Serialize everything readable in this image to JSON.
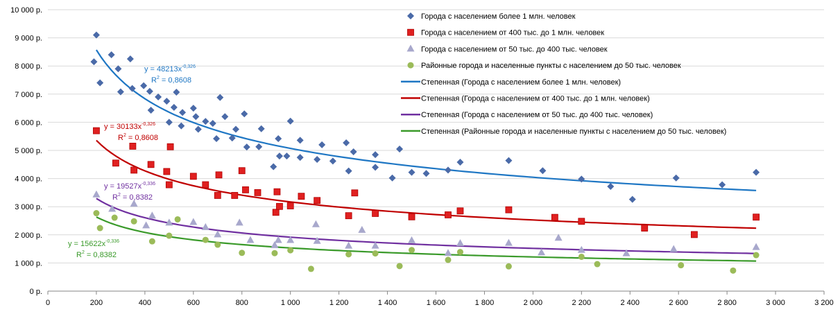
{
  "chart_data": {
    "type": "scatter",
    "xlim": [
      0,
      3200
    ],
    "ylim": [
      0,
      10000
    ],
    "grid": true,
    "legend_position": "top-right",
    "x_ticks": [
      "0",
      "200",
      "400",
      "600",
      "800",
      "1 000",
      "1 200",
      "1 400",
      "1 600",
      "1 800",
      "2 000",
      "2 200",
      "2 400",
      "2 600",
      "2 800",
      "3 000",
      "3 200"
    ],
    "y_ticks": [
      "0 р.",
      "1 000 р.",
      "2 000 р.",
      "3 000 р.",
      "4 000 р.",
      "5 000 р.",
      "6 000 р.",
      "7 000 р.",
      "8 000 р.",
      "9 000 р.",
      "10 000 р."
    ],
    "series": [
      {
        "name": "Города с населением  более 1 млн. человек",
        "marker": "diamond",
        "color": "#4a6aa8",
        "points": [
          [
            190,
            8150
          ],
          [
            200,
            9100
          ],
          [
            215,
            7400
          ],
          [
            262,
            8400
          ],
          [
            290,
            7900
          ],
          [
            300,
            7080
          ],
          [
            340,
            8250
          ],
          [
            348,
            7200
          ],
          [
            395,
            7300
          ],
          [
            420,
            7100
          ],
          [
            425,
            6430
          ],
          [
            455,
            6900
          ],
          [
            490,
            6750
          ],
          [
            500,
            6000
          ],
          [
            520,
            6530
          ],
          [
            530,
            7070
          ],
          [
            550,
            5870
          ],
          [
            555,
            6350
          ],
          [
            600,
            6500
          ],
          [
            610,
            6200
          ],
          [
            620,
            5750
          ],
          [
            650,
            6030
          ],
          [
            680,
            5960
          ],
          [
            695,
            5420
          ],
          [
            710,
            6880
          ],
          [
            730,
            6200
          ],
          [
            760,
            5440
          ],
          [
            775,
            5750
          ],
          [
            810,
            6300
          ],
          [
            820,
            5120
          ],
          [
            870,
            5130
          ],
          [
            880,
            5770
          ],
          [
            930,
            4420
          ],
          [
            950,
            5420
          ],
          [
            955,
            4800
          ],
          [
            985,
            4800
          ],
          [
            1000,
            6040
          ],
          [
            1040,
            5360
          ],
          [
            1040,
            4750
          ],
          [
            1110,
            4680
          ],
          [
            1130,
            5200
          ],
          [
            1175,
            4620
          ],
          [
            1230,
            5270
          ],
          [
            1240,
            4270
          ],
          [
            1260,
            4950
          ],
          [
            1350,
            4400
          ],
          [
            1350,
            4850
          ],
          [
            1420,
            4020
          ],
          [
            1450,
            5050
          ],
          [
            1500,
            4220
          ],
          [
            1560,
            4180
          ],
          [
            1650,
            4300
          ],
          [
            1700,
            4580
          ],
          [
            1900,
            4640
          ],
          [
            2040,
            4280
          ],
          [
            2200,
            3980
          ],
          [
            2320,
            3720
          ],
          [
            2410,
            3260
          ],
          [
            2590,
            4020
          ],
          [
            2780,
            3780
          ],
          [
            2920,
            4220
          ]
        ]
      },
      {
        "name": "Города с населением  от 400 тыс. до 1 млн. человек",
        "marker": "square",
        "color": "#e02020",
        "points": [
          [
            200,
            5700
          ],
          [
            280,
            4550
          ],
          [
            350,
            5150
          ],
          [
            355,
            4300
          ],
          [
            425,
            4500
          ],
          [
            490,
            4250
          ],
          [
            500,
            3780
          ],
          [
            505,
            5130
          ],
          [
            600,
            4080
          ],
          [
            650,
            3780
          ],
          [
            700,
            3400
          ],
          [
            705,
            4130
          ],
          [
            770,
            3400
          ],
          [
            800,
            4280
          ],
          [
            815,
            3600
          ],
          [
            865,
            3500
          ],
          [
            940,
            2800
          ],
          [
            945,
            3530
          ],
          [
            955,
            3010
          ],
          [
            1000,
            3030
          ],
          [
            1045,
            3370
          ],
          [
            1110,
            3220
          ],
          [
            1240,
            2680
          ],
          [
            1265,
            3490
          ],
          [
            1350,
            2760
          ],
          [
            1500,
            2640
          ],
          [
            1650,
            2710
          ],
          [
            1700,
            2850
          ],
          [
            1900,
            2890
          ],
          [
            2090,
            2620
          ],
          [
            2200,
            2480
          ],
          [
            2460,
            2240
          ],
          [
            2665,
            2010
          ],
          [
            2920,
            2630
          ]
        ]
      },
      {
        "name": "Города с населением  от 50 тыс. до 400 тыс. человек",
        "marker": "triangle",
        "color": "#a8a8cc",
        "points": [
          [
            200,
            3430
          ],
          [
            265,
            2920
          ],
          [
            355,
            3100
          ],
          [
            405,
            2330
          ],
          [
            430,
            2680
          ],
          [
            500,
            2430
          ],
          [
            600,
            2450
          ],
          [
            650,
            2270
          ],
          [
            700,
            2010
          ],
          [
            790,
            2430
          ],
          [
            835,
            1810
          ],
          [
            935,
            1630
          ],
          [
            950,
            1810
          ],
          [
            1000,
            1810
          ],
          [
            1105,
            2370
          ],
          [
            1110,
            1780
          ],
          [
            1240,
            1610
          ],
          [
            1295,
            2170
          ],
          [
            1350,
            1610
          ],
          [
            1500,
            1800
          ],
          [
            1650,
            1350
          ],
          [
            1700,
            1700
          ],
          [
            1900,
            1710
          ],
          [
            2035,
            1370
          ],
          [
            2105,
            1890
          ],
          [
            2200,
            1460
          ],
          [
            2385,
            1340
          ],
          [
            2580,
            1490
          ],
          [
            2920,
            1560
          ]
        ]
      },
      {
        "name": "Районные города и населенные пункты с населением до 50 тыс. человек",
        "marker": "circle",
        "color": "#9bbb59",
        "points": [
          [
            200,
            2770
          ],
          [
            215,
            2240
          ],
          [
            275,
            2610
          ],
          [
            355,
            2480
          ],
          [
            430,
            1770
          ],
          [
            500,
            1970
          ],
          [
            535,
            2550
          ],
          [
            650,
            1820
          ],
          [
            700,
            1650
          ],
          [
            800,
            1360
          ],
          [
            935,
            1350
          ],
          [
            1000,
            1450
          ],
          [
            1085,
            790
          ],
          [
            1240,
            1310
          ],
          [
            1350,
            1340
          ],
          [
            1450,
            890
          ],
          [
            1500,
            1460
          ],
          [
            1650,
            1110
          ],
          [
            1700,
            1390
          ],
          [
            1900,
            880
          ],
          [
            2200,
            1220
          ],
          [
            2265,
            960
          ],
          [
            2610,
            920
          ],
          [
            2825,
            730
          ],
          [
            2920,
            1280
          ]
        ]
      }
    ],
    "trendlines": [
      {
        "name": "Степенная (Города с населением  более 1 млн. человек)",
        "a": 48213,
        "b": -0.326,
        "x_range": [
          200,
          2920
        ],
        "color": "#1f77c4",
        "equation": "y = 48213x",
        "exponent": "-0,326",
        "r2_label": "R",
        "r2_value": " = 0,8608"
      },
      {
        "name": "Степенная (Города с населением  от 400 тыс. до 1 млн. человек)",
        "a": 30133,
        "b": -0.326,
        "x_range": [
          200,
          2920
        ],
        "color": "#c00000",
        "equation": "y = 30133x",
        "exponent": "-0,326",
        "r2_label": "R",
        "r2_value": " = 0,8608"
      },
      {
        "name": "Степенная (Города с населением  от 50 тыс. до 400 тыс. человек)",
        "a": 19527,
        "b": -0.336,
        "x_range": [
          200,
          2920
        ],
        "color": "#7030a0",
        "equation": "y = 19527x",
        "exponent": "-0,336",
        "r2_label": "R",
        "r2_value": " = 0,8382"
      },
      {
        "name": "Степенная (Районные города и населенные пункты с населением до 50 тыс. человек)",
        "a": 15622,
        "b": -0.336,
        "x_range": [
          200,
          2920
        ],
        "color": "#3a9a2a",
        "equation": "y = 15622x",
        "exponent": "-0,336",
        "r2_label": "R",
        "r2_value": " = 0,8382"
      }
    ]
  }
}
